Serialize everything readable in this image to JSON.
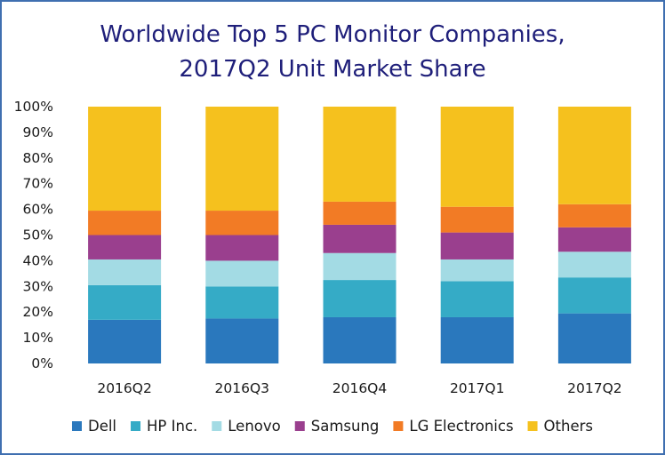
{
  "chart_data": {
    "type": "bar",
    "stacked": true,
    "title": "Worldwide Top 5 PC Monitor Companies,",
    "subtitle": "2017Q2 Unit Market Share",
    "xlabel": "",
    "ylabel": "",
    "ylim": [
      0,
      100
    ],
    "yticks": [
      "0%",
      "10%",
      "20%",
      "30%",
      "40%",
      "50%",
      "60%",
      "70%",
      "80%",
      "90%",
      "100%"
    ],
    "grid": false,
    "legend_position": "bottom",
    "categories": [
      "2016Q2",
      "2016Q3",
      "2016Q4",
      "2017Q1",
      "2017Q2"
    ],
    "series": [
      {
        "name": "Dell",
        "color": "#2a78bd",
        "values": [
          17,
          17.5,
          18,
          18,
          19.5
        ]
      },
      {
        "name": "HP Inc.",
        "color": "#35abc6",
        "values": [
          13.5,
          12.5,
          14.5,
          14,
          14
        ]
      },
      {
        "name": "Lenovo",
        "color": "#a3dbe4",
        "values": [
          10,
          10,
          10.5,
          8.5,
          10
        ]
      },
      {
        "name": "Samsung",
        "color": "#9a3f8e",
        "values": [
          9.5,
          10,
          11,
          10.5,
          9.5
        ]
      },
      {
        "name": "LG Electronics",
        "color": "#f27b25",
        "values": [
          9.5,
          9.5,
          9,
          10,
          9
        ]
      },
      {
        "name": "Others",
        "color": "#f5c11e",
        "values": [
          40.5,
          40.5,
          37,
          39,
          38
        ]
      }
    ]
  }
}
